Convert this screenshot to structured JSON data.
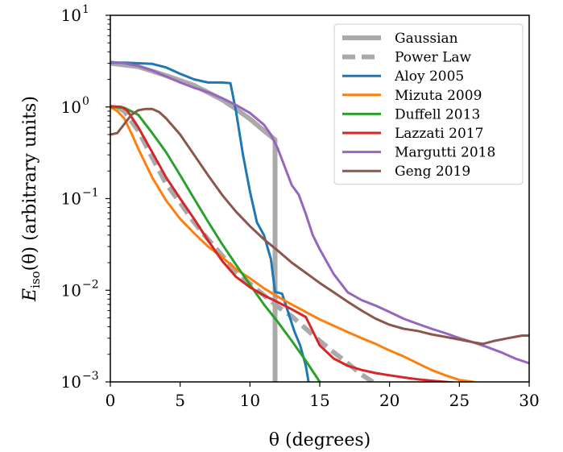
{
  "chart_data": {
    "type": "line",
    "xlabel": "θ (degrees)",
    "ylabel": "E_iso(θ) (arbitrary units)",
    "ylabel_parts": {
      "symbol": "E",
      "subscript": "iso",
      "rest": "(θ) (arbitrary units)"
    },
    "xlim": [
      0,
      30
    ],
    "ylim": [
      0.001,
      10
    ],
    "yscale": "log",
    "xticks": [
      0,
      5,
      10,
      15,
      20,
      25,
      30
    ],
    "yticks": [
      {
        "value": 0.001,
        "base": "10",
        "exp": "−3"
      },
      {
        "value": 0.01,
        "base": "10",
        "exp": "−2"
      },
      {
        "value": 0.1,
        "base": "10",
        "exp": "−1"
      },
      {
        "value": 1,
        "base": "10",
        "exp": "0"
      },
      {
        "value": 10,
        "base": "10",
        "exp": "1"
      }
    ],
    "legend_position": "top-right",
    "series": [
      {
        "name": "Gaussian",
        "color": "#aaaaaa",
        "width": 6,
        "dash": "",
        "x": [
          0,
          2,
          4,
          6,
          8,
          9,
          10,
          11,
          11.8,
          11.8
        ],
        "y": [
          3.0,
          2.75,
          2.2,
          1.72,
          1.2,
          0.95,
          0.74,
          0.55,
          0.44,
          0.001
        ]
      },
      {
        "name": "Power Law",
        "color": "#aaaaaa",
        "width": 6,
        "dash": "16,8",
        "x": [
          0.5,
          1,
          2,
          3,
          4,
          5,
          6,
          7,
          8,
          9,
          10,
          11,
          12,
          13,
          14,
          15,
          16,
          17,
          18,
          18.8
        ],
        "y": [
          1.0,
          0.9,
          0.55,
          0.28,
          0.145,
          0.09,
          0.055,
          0.036,
          0.024,
          0.016,
          0.0118,
          0.0088,
          0.0066,
          0.0052,
          0.0038,
          0.0028,
          0.0021,
          0.0016,
          0.0012,
          0.001
        ]
      },
      {
        "name": "Aloy 2005",
        "color": "#1f77b4",
        "width": 3,
        "dash": "",
        "x": [
          0,
          1,
          2,
          3,
          4,
          5,
          6,
          7,
          8,
          8.6,
          9,
          9.5,
          10,
          10.5,
          11,
          11.5,
          11.8,
          12.3,
          12.7,
          13.2,
          13.6,
          14,
          14.2
        ],
        "y": [
          3.05,
          3.05,
          3.0,
          2.95,
          2.7,
          2.3,
          2.0,
          1.85,
          1.85,
          1.82,
          0.9,
          0.3,
          0.12,
          0.055,
          0.04,
          0.022,
          0.0096,
          0.0092,
          0.006,
          0.0035,
          0.0025,
          0.0015,
          0.001
        ]
      },
      {
        "name": "Mizuta 2009",
        "color": "#ff7f0e",
        "width": 3,
        "dash": "",
        "x": [
          0,
          0.5,
          1,
          1.5,
          2,
          3,
          4,
          5,
          6,
          7,
          8,
          9,
          10,
          11,
          12,
          13,
          14,
          15,
          16,
          17,
          18,
          19,
          20,
          21,
          22,
          23,
          24,
          25,
          26
        ],
        "y": [
          1.0,
          0.9,
          0.75,
          0.52,
          0.35,
          0.17,
          0.095,
          0.06,
          0.042,
          0.03,
          0.023,
          0.017,
          0.0135,
          0.0105,
          0.0085,
          0.007,
          0.0058,
          0.0048,
          0.0041,
          0.0035,
          0.003,
          0.0026,
          0.0022,
          0.0019,
          0.0016,
          0.00135,
          0.00118,
          0.00105,
          0.001
        ]
      },
      {
        "name": "Duffell 2013",
        "color": "#2ca02c",
        "width": 3,
        "dash": "",
        "x": [
          0,
          1,
          2,
          3,
          4,
          5,
          6,
          7,
          8,
          9,
          10,
          11,
          12,
          13,
          14,
          15
        ],
        "y": [
          1.0,
          0.98,
          0.82,
          0.52,
          0.32,
          0.18,
          0.1,
          0.056,
          0.032,
          0.019,
          0.0115,
          0.007,
          0.0045,
          0.0028,
          0.0017,
          0.001
        ]
      },
      {
        "name": "Lazzati 2017",
        "color": "#d62728",
        "width": 3,
        "dash": "",
        "x": [
          0,
          0.8,
          1.2,
          2,
          3,
          4,
          5,
          6,
          7,
          8,
          9,
          10,
          11,
          12,
          13,
          14,
          15,
          16,
          17,
          18,
          19,
          20,
          21,
          22,
          23,
          24,
          25,
          26
        ],
        "y": [
          1.02,
          1.0,
          0.92,
          0.6,
          0.32,
          0.17,
          0.1,
          0.06,
          0.035,
          0.021,
          0.014,
          0.0108,
          0.0088,
          0.0074,
          0.0062,
          0.0051,
          0.0025,
          0.0018,
          0.0015,
          0.00135,
          0.00125,
          0.00118,
          0.00112,
          0.00107,
          0.00103,
          0.001,
          0.00097,
          0.00095
        ]
      },
      {
        "name": "Margutti 2018",
        "color": "#9467bd",
        "width": 3,
        "dash": "",
        "x": [
          0,
          1,
          2,
          3,
          4,
          5,
          6,
          7,
          8,
          9,
          10,
          11,
          11.5,
          12,
          12.5,
          13,
          13.5,
          14,
          14.5,
          15,
          16,
          17,
          18,
          19,
          20,
          21,
          22,
          23,
          24,
          25,
          26,
          27,
          28,
          29,
          30
        ],
        "y": [
          3.1,
          3.0,
          2.8,
          2.5,
          2.15,
          1.85,
          1.62,
          1.45,
          1.25,
          1.05,
          0.86,
          0.64,
          0.5,
          0.35,
          0.22,
          0.14,
          0.11,
          0.068,
          0.04,
          0.028,
          0.015,
          0.0095,
          0.0078,
          0.0068,
          0.0058,
          0.0049,
          0.0043,
          0.0038,
          0.0034,
          0.003,
          0.0027,
          0.0024,
          0.0021,
          0.0018,
          0.0016
        ]
      },
      {
        "name": "Geng 2019",
        "color": "#8c564b",
        "width": 3,
        "dash": "",
        "x": [
          0,
          0.5,
          1,
          1.5,
          2,
          2.5,
          3,
          3.5,
          4,
          5,
          6,
          7,
          8,
          9,
          10,
          11,
          12,
          13,
          14,
          15,
          16,
          17,
          18,
          19,
          20,
          21,
          22,
          23,
          24,
          25,
          26,
          26.7,
          27.5,
          28.5,
          29.5,
          30
        ],
        "y": [
          0.5,
          0.52,
          0.65,
          0.82,
          0.92,
          0.95,
          0.95,
          0.88,
          0.75,
          0.5,
          0.3,
          0.18,
          0.11,
          0.072,
          0.05,
          0.036,
          0.027,
          0.02,
          0.0155,
          0.012,
          0.0095,
          0.0075,
          0.006,
          0.0049,
          0.0042,
          0.0038,
          0.0036,
          0.0033,
          0.0031,
          0.0029,
          0.0027,
          0.0026,
          0.0028,
          0.003,
          0.0032,
          0.0032
        ]
      }
    ]
  }
}
